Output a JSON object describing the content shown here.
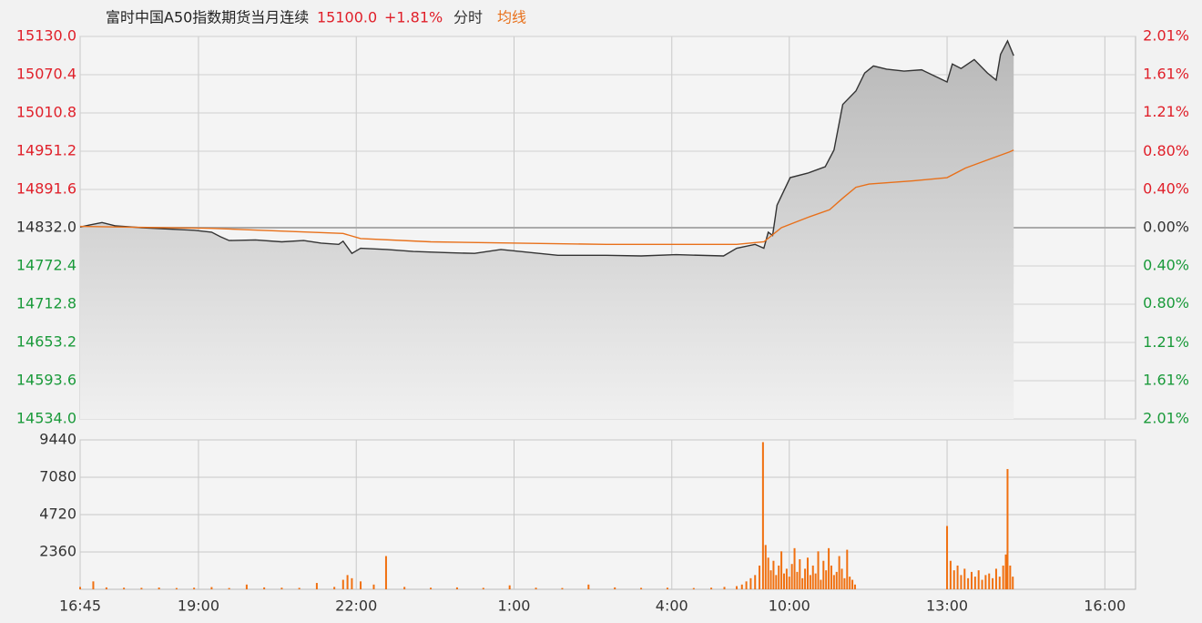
{
  "chart_data": [
    {
      "type": "line",
      "title": "富时中国A50指数期货当月连续",
      "last_price": "15100.0",
      "change": "+1.81%",
      "xlim": [
        0,
        1204
      ],
      "ylim": [
        14534,
        15130
      ],
      "yticks": [
        {
          "value": 15130,
          "label": "15130.0"
        },
        15070.4,
        15010.8,
        14951.2,
        14891.6,
        {
          "value": 14832,
          "label": "14832.0"
        },
        14772.4,
        14712.8,
        14653.2,
        14593.6,
        {
          "value": 14534,
          "label": "14534.0"
        }
      ],
      "y2lim": [
        -2.01,
        2.01
      ],
      "y2ticks": [
        {
          "value": 2.01,
          "label": "2.01%"
        },
        {
          "value": 1.61,
          "label": "1.61%"
        },
        {
          "value": 1.21,
          "label": "1.21%"
        },
        {
          "value": 0.8,
          "label": "0.80%"
        },
        {
          "value": 0.4,
          "label": "0.40%"
        },
        {
          "value": 0,
          "label": "0.00%"
        },
        {
          "value": -0.4,
          "label": "0.40%"
        },
        {
          "value": -0.8,
          "label": "0.80%"
        },
        {
          "value": -1.21,
          "label": "1.21%"
        },
        {
          "value": -1.61,
          "label": "1.61%"
        },
        {
          "value": -2.01,
          "label": "2.01%"
        }
      ],
      "series": [
        {
          "name": "分时",
          "color": "#333333",
          "x": [
            0,
            10,
            25,
            40,
            70,
            100,
            130,
            150,
            160,
            170,
            200,
            230,
            255,
            275,
            295,
            300,
            310,
            320,
            350,
            380,
            420,
            450,
            480,
            545,
            600,
            640,
            680,
            734,
            749,
            770,
            780,
            785,
            790,
            795,
            810,
            830,
            850,
            860,
            870,
            885,
            895,
            905,
            920,
            940,
            960,
            989,
            995,
            1005,
            1020,
            1035,
            1045,
            1050,
            1058,
            1065
          ],
          "values": [
            14833,
            14836,
            14840,
            14835,
            14832,
            14830,
            14828,
            14825,
            14818,
            14812,
            14813,
            14810,
            14812,
            14808,
            14806,
            14811,
            14792,
            14800,
            14798,
            14795,
            14793,
            14792,
            14798,
            14789,
            14789,
            14788,
            14790,
            14788,
            14800,
            14806,
            14800,
            14825,
            14820,
            14867,
            14910,
            14917,
            14927,
            14953,
            15024,
            15045,
            15073,
            15084,
            15079,
            15076,
            15078,
            15059,
            15087,
            15080,
            15094,
            15073,
            15062,
            15102,
            15123,
            15100
          ]
        },
        {
          "name": "均线",
          "color": "#e8701a",
          "x": [
            0,
            150,
            300,
            320,
            400,
            600,
            749,
            780,
            800,
            830,
            855,
            870,
            885,
            900,
            950,
            989,
            1010,
            1040,
            1060,
            1065
          ],
          "values": [
            14834,
            14831,
            14823,
            14815,
            14810,
            14806,
            14806,
            14810,
            14832,
            14848,
            14860,
            14878,
            14895,
            14900,
            14905,
            14910,
            14925,
            14940,
            14950,
            14953
          ]
        }
      ]
    },
    {
      "type": "bar",
      "color": "#f07010",
      "xlim": [
        0,
        1204
      ],
      "ylim": [
        0,
        9440
      ],
      "yticks": [
        9440,
        7080,
        4720,
        2360
      ],
      "xticks": [
        {
          "value": 0,
          "label": "16:45"
        },
        {
          "value": 135,
          "label": "19:00"
        },
        {
          "value": 315,
          "label": "22:00"
        },
        {
          "value": 495,
          "label": "1:00"
        },
        {
          "value": 675,
          "label": "4:00"
        },
        {
          "value": 809,
          "label": "10:00"
        },
        {
          "value": 989,
          "label": "13:00"
        },
        {
          "value": 1169,
          "label": "16:00"
        }
      ],
      "x": [
        0,
        15,
        30,
        50,
        70,
        90,
        110,
        130,
        150,
        170,
        190,
        210,
        230,
        250,
        270,
        290,
        300,
        305,
        310,
        320,
        335,
        349,
        370,
        400,
        430,
        460,
        490,
        520,
        550,
        580,
        610,
        640,
        670,
        700,
        720,
        735,
        749,
        755,
        760,
        765,
        770,
        775,
        779,
        782,
        785,
        788,
        791,
        794,
        797,
        800,
        803,
        806,
        809,
        812,
        815,
        818,
        821,
        824,
        827,
        830,
        833,
        836,
        839,
        842,
        845,
        848,
        851,
        854,
        857,
        860,
        863,
        866,
        869,
        872,
        875,
        878,
        881,
        884,
        989,
        993,
        997,
        1001,
        1005,
        1009,
        1013,
        1017,
        1021,
        1025,
        1029,
        1033,
        1037,
        1041,
        1045,
        1049,
        1053,
        1056,
        1058,
        1061,
        1064
      ],
      "values": [
        150,
        500,
        120,
        100,
        90,
        110,
        80,
        100,
        140,
        80,
        300,
        120,
        100,
        90,
        400,
        150,
        600,
        900,
        700,
        500,
        300,
        2100,
        150,
        100,
        120,
        90,
        250,
        100,
        80,
        300,
        120,
        90,
        100,
        80,
        100,
        150,
        200,
        300,
        500,
        700,
        900,
        1500,
        9300,
        2800,
        2000,
        1200,
        1800,
        900,
        1500,
        2400,
        1000,
        1300,
        800,
        1600,
        2600,
        1100,
        1900,
        700,
        1300,
        2000,
        900,
        1500,
        1000,
        2400,
        600,
        1800,
        1200,
        2600,
        1500,
        900,
        1100,
        2100,
        1300,
        700,
        2500,
        800,
        600,
        300,
        4000,
        1800,
        1200,
        1500,
        900,
        1300,
        700,
        1100,
        800,
        1200,
        600,
        900,
        1000,
        700,
        1300,
        800,
        1500,
        2200,
        7600,
        1500,
        800
      ]
    }
  ]
}
